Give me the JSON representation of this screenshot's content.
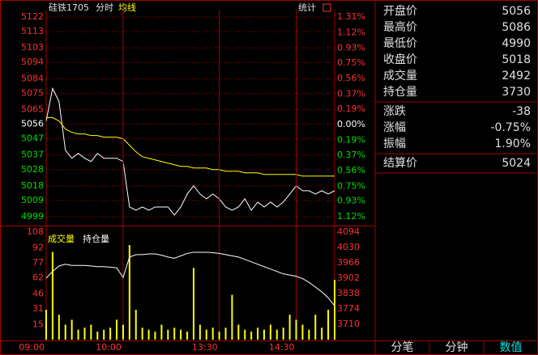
{
  "chart_data": [
    {
      "type": "line",
      "title": "硅铁1705",
      "subtitle": "分时",
      "x": [
        0,
        5,
        10,
        15,
        20,
        25,
        30,
        35,
        40,
        45,
        50,
        55,
        60,
        65,
        70,
        75,
        80,
        85,
        90,
        95,
        100,
        105,
        110,
        115,
        120,
        125,
        130,
        135,
        140,
        145,
        150,
        155,
        160,
        165,
        170,
        175,
        180,
        185,
        190,
        195,
        200,
        205,
        210,
        215,
        220,
        225
      ],
      "xlim": [
        0,
        225
      ],
      "ylim": [
        4999,
        5122
      ],
      "yticks": [
        5122,
        5113,
        5103,
        5094,
        5084,
        5075,
        5065,
        5056,
        5047,
        5037,
        5028,
        5018,
        5009,
        4999
      ],
      "y2lim": [
        -1.12,
        1.31
      ],
      "y2ticks": [
        {
          "value": 1.31,
          "label": "1.31%"
        },
        {
          "value": 1.12,
          "label": "1.12%"
        },
        {
          "value": 0.93,
          "label": "0.93%"
        },
        {
          "value": 0.75,
          "label": "0.75%"
        },
        {
          "value": 0.56,
          "label": "0.56%"
        },
        {
          "value": 0.37,
          "label": "0.37%"
        },
        {
          "value": 0.19,
          "label": "0.19%"
        },
        {
          "value": 0,
          "label": "0.00%"
        },
        {
          "value": -0.19,
          "label": "0.19%"
        },
        {
          "value": -0.37,
          "label": "0.37%"
        },
        {
          "value": -0.56,
          "label": "0.56%"
        },
        {
          "value": -0.75,
          "label": "0.75%"
        },
        {
          "value": -0.93,
          "label": "0.93%"
        },
        {
          "value": -1.12,
          "label": "1.12%"
        }
      ],
      "grid": true,
      "series": [
        {
          "color": "#ffffff",
          "values": [
            5058,
            5078,
            5070,
            5040,
            5035,
            5038,
            5035,
            5033,
            5038,
            5035,
            5035,
            5035,
            5033,
            5005,
            5003,
            5005,
            5003,
            5005,
            5005,
            5005,
            5000,
            5005,
            5013,
            5018,
            5013,
            5010,
            5013,
            5010,
            5005,
            5003,
            5005,
            5010,
            5003,
            5008,
            5005,
            5008,
            5005,
            5008,
            5013,
            5018,
            5015,
            5015,
            5013,
            5015,
            5013,
            5015
          ]
        },
        {
          "name": "均线",
          "color": "#ffff00",
          "values": [
            5060,
            5060,
            5058,
            5053,
            5051,
            5050,
            5050,
            5049,
            5049,
            5048,
            5048,
            5048,
            5047,
            5043,
            5039,
            5036,
            5035,
            5034,
            5033,
            5032,
            5031,
            5030,
            5030,
            5029,
            5029,
            5029,
            5028,
            5028,
            5027,
            5027,
            5027,
            5026,
            5026,
            5026,
            5025,
            5025,
            5025,
            5025,
            5025,
            5025,
            5024,
            5024,
            5024,
            5024,
            5024,
            5024
          ]
        }
      ]
    },
    {
      "type": "bar",
      "x": [
        0,
        5,
        10,
        15,
        20,
        25,
        30,
        35,
        40,
        45,
        50,
        55,
        60,
        65,
        70,
        75,
        80,
        85,
        90,
        95,
        100,
        105,
        110,
        115,
        120,
        125,
        130,
        135,
        140,
        145,
        150,
        155,
        160,
        165,
        170,
        175,
        180,
        185,
        190,
        195,
        200,
        205,
        210,
        215,
        220,
        225
      ],
      "xlim": [
        0,
        225
      ],
      "xticks": [
        {
          "value": 0,
          "label": "09:00"
        },
        {
          "value": 60,
          "label": "10:00"
        },
        {
          "value": 135,
          "label": "13:30"
        },
        {
          "value": 195,
          "label": "14:30"
        }
      ],
      "ylim": [
        0,
        108
      ],
      "yticks": [
        108,
        92,
        77,
        62,
        46,
        31,
        15
      ],
      "y2lim": [
        3646,
        4094
      ],
      "y2ticks": [
        4094,
        4030,
        3966,
        3902,
        3838,
        3774,
        3710
      ],
      "series": [
        {
          "name": "成交量",
          "color": "#ffff00",
          "values": [
            30,
            88,
            25,
            15,
            20,
            10,
            12,
            15,
            8,
            10,
            12,
            20,
            15,
            95,
            30,
            12,
            10,
            8,
            15,
            10,
            12,
            10,
            8,
            72,
            15,
            10,
            12,
            8,
            12,
            45,
            15,
            10,
            8,
            12,
            10,
            15,
            10,
            12,
            25,
            20,
            15,
            10,
            25,
            12,
            30,
            60
          ]
        },
        {
          "name": "持仓量",
          "color": "#ffffff",
          "type": "line",
          "axis": "y2",
          "values": [
            3902,
            3930,
            3953,
            3960,
            3955,
            3955,
            3955,
            3953,
            3950,
            3950,
            3948,
            3945,
            3905,
            3990,
            4000,
            4000,
            4003,
            4003,
            3998,
            3990,
            3985,
            3995,
            4005,
            4010,
            4010,
            4010,
            4008,
            4005,
            4000,
            3995,
            3990,
            3980,
            3970,
            3960,
            3950,
            3940,
            3930,
            3920,
            3915,
            3910,
            3900,
            3885,
            3865,
            3845,
            3820,
            3787
          ]
        }
      ]
    }
  ],
  "toolbar": {
    "button": "统计"
  },
  "info_panel": {
    "groups": [
      [
        {
          "label": "开盘价",
          "value": "5056"
        },
        {
          "label": "最高价",
          "value": "5086"
        },
        {
          "label": "最低价",
          "value": "4990"
        },
        {
          "label": "收盘价",
          "value": "5018"
        },
        {
          "label": "成交量",
          "value": "2492"
        },
        {
          "label": "持仓量",
          "value": "3730"
        }
      ],
      [
        {
          "label": "涨跌",
          "value": "-38"
        },
        {
          "label": "涨幅",
          "value": "-0.75%"
        },
        {
          "label": "振幅",
          "value": "1.90%"
        }
      ],
      [
        {
          "label": "结算价",
          "value": "5024"
        }
      ]
    ]
  },
  "tabs": [
    "分笔",
    "分钟",
    "数值"
  ],
  "active_tab": "数值"
}
